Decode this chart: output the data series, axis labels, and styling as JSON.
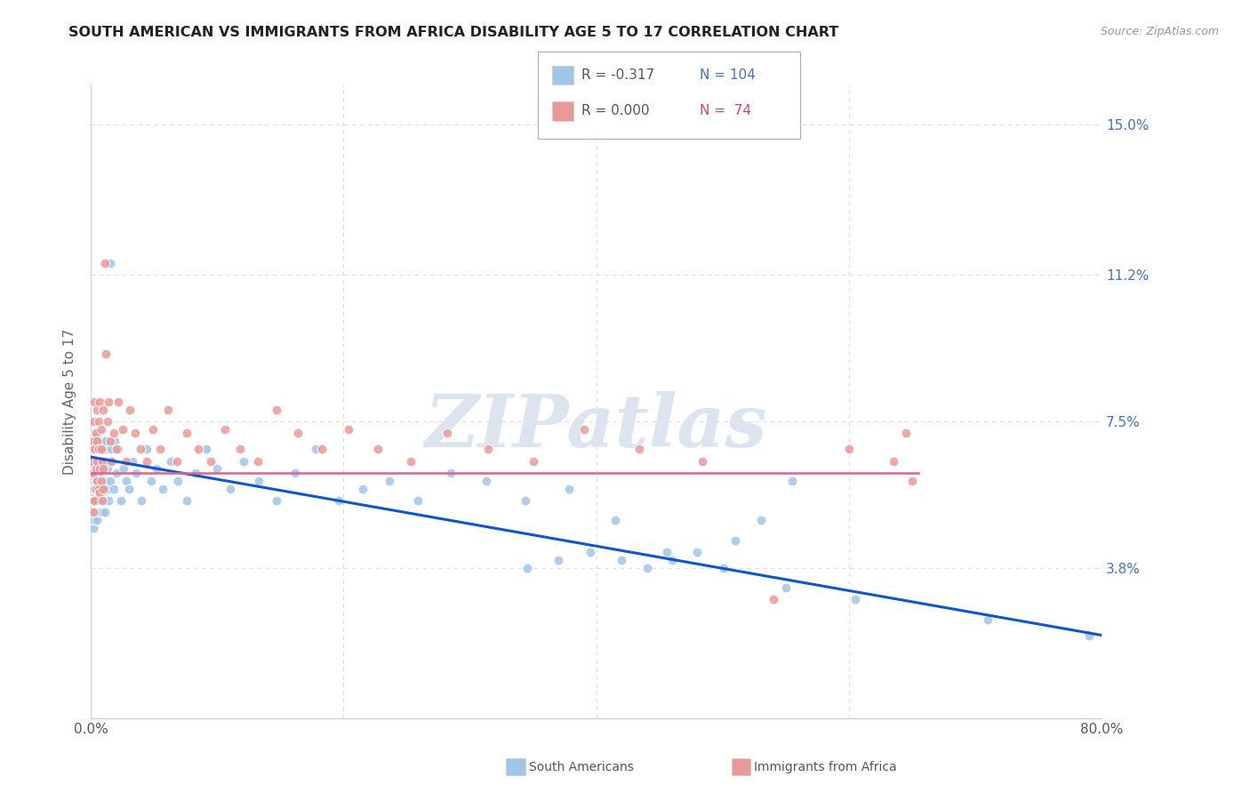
{
  "title": "SOUTH AMERICAN VS IMMIGRANTS FROM AFRICA DISABILITY AGE 5 TO 17 CORRELATION CHART",
  "source": "Source: ZipAtlas.com",
  "ylabel": "Disability Age 5 to 17",
  "right_yticks": [
    0.0,
    0.038,
    0.075,
    0.112,
    0.15
  ],
  "right_yticklabels": [
    "",
    "3.8%",
    "7.5%",
    "11.2%",
    "15.0%"
  ],
  "xlim": [
    0.0,
    0.8
  ],
  "ylim": [
    0.0,
    0.16
  ],
  "legend_blue_r": "R = -0.317",
  "legend_blue_n": "N = 104",
  "legend_pink_r": "R = 0.000",
  "legend_pink_n": "N =  74",
  "blue_label": "South Americans",
  "pink_label": "Immigrants from Africa",
  "blue_color": "#9fc5e8",
  "pink_color": "#ea9999",
  "blue_line_color": "#1155cc",
  "pink_line_color": "#e06090",
  "watermark_color": "#dce4f0",
  "grid_color": "#dddddd",
  "blue_trend_x0": 0.0,
  "blue_trend_y0": 0.066,
  "blue_trend_x1": 0.8,
  "blue_trend_y1": 0.021,
  "pink_trend_x0": 0.0,
  "pink_trend_y0": 0.062,
  "pink_trend_x1": 0.655,
  "pink_trend_y1": 0.062,
  "blue_x": [
    0.001,
    0.001,
    0.001,
    0.002,
    0.002,
    0.002,
    0.002,
    0.003,
    0.003,
    0.003,
    0.003,
    0.004,
    0.004,
    0.004,
    0.004,
    0.005,
    0.005,
    0.005,
    0.005,
    0.005,
    0.006,
    0.006,
    0.006,
    0.006,
    0.007,
    0.007,
    0.007,
    0.007,
    0.007,
    0.008,
    0.008,
    0.008,
    0.008,
    0.009,
    0.009,
    0.009,
    0.009,
    0.01,
    0.01,
    0.01,
    0.011,
    0.011,
    0.011,
    0.012,
    0.012,
    0.013,
    0.013,
    0.014,
    0.015,
    0.015,
    0.016,
    0.017,
    0.018,
    0.019,
    0.02,
    0.022,
    0.024,
    0.026,
    0.028,
    0.03,
    0.033,
    0.036,
    0.04,
    0.044,
    0.048,
    0.052,
    0.057,
    0.063,
    0.069,
    0.076,
    0.083,
    0.091,
    0.1,
    0.11,
    0.121,
    0.133,
    0.147,
    0.162,
    0.178,
    0.196,
    0.215,
    0.236,
    0.259,
    0.285,
    0.313,
    0.344,
    0.378,
    0.415,
    0.456,
    0.501,
    0.55,
    0.605,
    0.555,
    0.53,
    0.51,
    0.48,
    0.46,
    0.44,
    0.42,
    0.395,
    0.37,
    0.345,
    0.71,
    0.79
  ],
  "blue_y": [
    0.06,
    0.062,
    0.058,
    0.055,
    0.065,
    0.048,
    0.07,
    0.05,
    0.063,
    0.057,
    0.052,
    0.068,
    0.06,
    0.055,
    0.072,
    0.058,
    0.065,
    0.05,
    0.063,
    0.07,
    0.057,
    0.062,
    0.055,
    0.068,
    0.06,
    0.052,
    0.065,
    0.07,
    0.058,
    0.063,
    0.055,
    0.068,
    0.06,
    0.057,
    0.065,
    0.052,
    0.07,
    0.063,
    0.058,
    0.055,
    0.068,
    0.06,
    0.052,
    0.065,
    0.07,
    0.058,
    0.063,
    0.055,
    0.115,
    0.06,
    0.068,
    0.065,
    0.058,
    0.07,
    0.062,
    0.068,
    0.055,
    0.063,
    0.06,
    0.058,
    0.065,
    0.062,
    0.055,
    0.068,
    0.06,
    0.063,
    0.058,
    0.065,
    0.06,
    0.055,
    0.062,
    0.068,
    0.063,
    0.058,
    0.065,
    0.06,
    0.055,
    0.062,
    0.068,
    0.055,
    0.058,
    0.06,
    0.055,
    0.062,
    0.06,
    0.055,
    0.058,
    0.05,
    0.042,
    0.038,
    0.033,
    0.03,
    0.06,
    0.05,
    0.045,
    0.042,
    0.04,
    0.038,
    0.04,
    0.042,
    0.04,
    0.038,
    0.025,
    0.021
  ],
  "pink_x": [
    0.001,
    0.001,
    0.001,
    0.002,
    0.002,
    0.002,
    0.002,
    0.003,
    0.003,
    0.003,
    0.003,
    0.004,
    0.004,
    0.004,
    0.005,
    0.005,
    0.005,
    0.005,
    0.006,
    0.006,
    0.006,
    0.007,
    0.007,
    0.007,
    0.008,
    0.008,
    0.008,
    0.009,
    0.009,
    0.01,
    0.01,
    0.01,
    0.011,
    0.012,
    0.013,
    0.014,
    0.015,
    0.016,
    0.018,
    0.02,
    0.022,
    0.025,
    0.028,
    0.031,
    0.035,
    0.039,
    0.044,
    0.049,
    0.055,
    0.061,
    0.068,
    0.076,
    0.085,
    0.095,
    0.106,
    0.118,
    0.132,
    0.147,
    0.164,
    0.183,
    0.204,
    0.227,
    0.253,
    0.282,
    0.314,
    0.35,
    0.39,
    0.434,
    0.484,
    0.54,
    0.6,
    0.635,
    0.645,
    0.65
  ],
  "pink_y": [
    0.058,
    0.065,
    0.055,
    0.07,
    0.062,
    0.075,
    0.052,
    0.068,
    0.058,
    0.08,
    0.055,
    0.072,
    0.063,
    0.058,
    0.078,
    0.065,
    0.06,
    0.07,
    0.075,
    0.058,
    0.068,
    0.063,
    0.08,
    0.057,
    0.073,
    0.06,
    0.068,
    0.065,
    0.055,
    0.078,
    0.063,
    0.058,
    0.115,
    0.092,
    0.075,
    0.08,
    0.07,
    0.065,
    0.072,
    0.068,
    0.08,
    0.073,
    0.065,
    0.078,
    0.072,
    0.068,
    0.065,
    0.073,
    0.068,
    0.078,
    0.065,
    0.072,
    0.068,
    0.065,
    0.073,
    0.068,
    0.065,
    0.078,
    0.072,
    0.068,
    0.073,
    0.068,
    0.065,
    0.072,
    0.068,
    0.065,
    0.073,
    0.068,
    0.065,
    0.03,
    0.068,
    0.065,
    0.072,
    0.06
  ]
}
